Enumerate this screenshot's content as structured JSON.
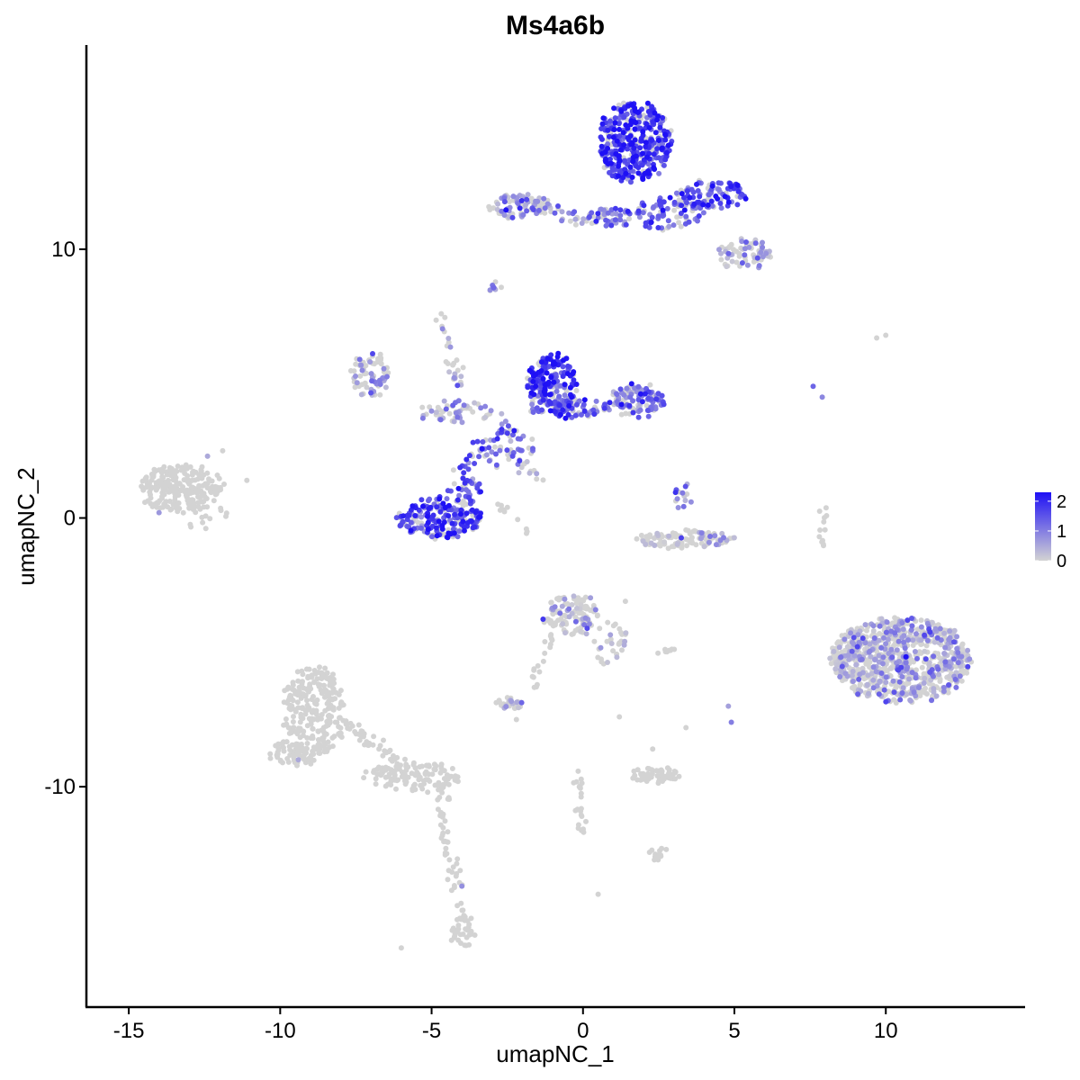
{
  "chart_data": {
    "type": "scatter",
    "title": "Ms4a6b",
    "xlabel": "umapNC_1",
    "ylabel": "umapNC_2",
    "xlim": [
      -16.4,
      14.6
    ],
    "ylim": [
      -18.2,
      17.6
    ],
    "x_ticks": [
      -15,
      -10,
      -5,
      0,
      5,
      10
    ],
    "x_tick_labels": [
      "-15",
      "-10",
      "-5",
      "0",
      "5",
      "10"
    ],
    "y_ticks": [
      -10,
      0,
      10
    ],
    "y_tick_labels": [
      "-10",
      "0",
      "10"
    ],
    "grid": false,
    "legend": {
      "placement": "right",
      "type": "colorbar",
      "ticks": [
        0,
        1,
        2
      ],
      "tick_labels": [
        "0",
        "1",
        "2"
      ],
      "range": [
        0,
        2.3
      ]
    },
    "color_low": "#d3d3d3",
    "color_high": "#1e10f5",
    "clusters": [
      {
        "cx": 1.7,
        "cy": 14.0,
        "rx": 1.2,
        "ry": 1.5,
        "n": 380,
        "expr": 1.7
      },
      {
        "cx": 4.2,
        "cy": 12.0,
        "rx": 1.3,
        "ry": 0.55,
        "n": 110,
        "expr": 1.4
      },
      {
        "cx": 2.8,
        "cy": 11.3,
        "rx": 1.2,
        "ry": 0.6,
        "n": 70,
        "expr": 1.2
      },
      {
        "cx": -2.1,
        "cy": 11.6,
        "rx": 1.0,
        "ry": 0.45,
        "n": 70,
        "expr": 0.7
      },
      {
        "cx": 0.9,
        "cy": 11.2,
        "rx": 0.7,
        "ry": 0.35,
        "n": 45,
        "expr": 1.3
      },
      {
        "cx": 5.3,
        "cy": 9.8,
        "rx": 0.9,
        "ry": 0.6,
        "n": 70,
        "expr": 0.5
      },
      {
        "cx": -2.9,
        "cy": 8.6,
        "rx": 0.25,
        "ry": 0.2,
        "n": 8,
        "expr": 0.9
      },
      {
        "cx": -1.0,
        "cy": 5.0,
        "rx": 0.8,
        "ry": 1.1,
        "n": 190,
        "expr": 1.8
      },
      {
        "cx": 1.8,
        "cy": 4.4,
        "rx": 0.9,
        "ry": 0.6,
        "n": 110,
        "expr": 1.1
      },
      {
        "cx": -0.5,
        "cy": 4.1,
        "rx": 1.4,
        "ry": 0.4,
        "n": 80,
        "expr": 1.2
      },
      {
        "cx": -7.0,
        "cy": 5.3,
        "rx": 0.6,
        "ry": 0.9,
        "n": 70,
        "expr": 0.3
      },
      {
        "cx": -4.2,
        "cy": 3.9,
        "rx": 1.2,
        "ry": 0.45,
        "n": 50,
        "expr": 0.5
      },
      {
        "cx": -2.5,
        "cy": 2.6,
        "rx": 0.9,
        "ry": 0.8,
        "n": 40,
        "expr": 1.2
      },
      {
        "cx": -4.7,
        "cy": 0.0,
        "rx": 1.4,
        "ry": 0.75,
        "n": 200,
        "expr": 1.6
      },
      {
        "cx": -3.9,
        "cy": 1.1,
        "rx": 0.5,
        "ry": 0.5,
        "n": 30,
        "expr": 1.4
      },
      {
        "cx": -13.3,
        "cy": 1.1,
        "rx": 1.4,
        "ry": 0.85,
        "n": 240,
        "expr": 0.02
      },
      {
        "cx": 3.4,
        "cy": -0.8,
        "rx": 1.6,
        "ry": 0.3,
        "n": 110,
        "expr": 0.1
      },
      {
        "cx": 3.3,
        "cy": 0.8,
        "rx": 0.25,
        "ry": 0.5,
        "n": 15,
        "expr": 0.9
      },
      {
        "cx": 10.5,
        "cy": -5.3,
        "rx": 2.3,
        "ry": 1.6,
        "n": 850,
        "expr": 0.3
      },
      {
        "cx": -0.4,
        "cy": -3.6,
        "rx": 0.9,
        "ry": 0.7,
        "n": 110,
        "expr": 0.2
      },
      {
        "cx": 0.9,
        "cy": -4.7,
        "rx": 0.6,
        "ry": 0.8,
        "n": 30,
        "expr": 0.05
      },
      {
        "cx": -8.9,
        "cy": -7.3,
        "rx": 1.0,
        "ry": 1.8,
        "n": 260,
        "expr": 0.02
      },
      {
        "cx": -9.7,
        "cy": -8.8,
        "rx": 0.6,
        "ry": 0.5,
        "n": 50,
        "expr": 0.02
      },
      {
        "cx": -5.6,
        "cy": -9.6,
        "rx": 1.6,
        "ry": 0.5,
        "n": 100,
        "expr": 0.0
      },
      {
        "cx": -4.0,
        "cy": -15.4,
        "rx": 0.4,
        "ry": 0.6,
        "n": 35,
        "expr": 0.0
      },
      {
        "cx": 2.4,
        "cy": -9.6,
        "rx": 0.8,
        "ry": 0.3,
        "n": 60,
        "expr": 0.02
      },
      {
        "cx": -2.4,
        "cy": -6.9,
        "rx": 0.5,
        "ry": 0.2,
        "n": 30,
        "expr": 0.1
      },
      {
        "cx": 2.4,
        "cy": -12.5,
        "rx": 0.35,
        "ry": 0.25,
        "n": 15,
        "expr": 0.0
      },
      {
        "cx": 7.9,
        "cy": -0.4,
        "rx": 0.15,
        "ry": 0.9,
        "n": 12,
        "expr": 0.0
      },
      {
        "cx": 2.7,
        "cy": -5.0,
        "rx": 0.35,
        "ry": 0.08,
        "n": 8,
        "expr": 0.0
      }
    ],
    "tracks": [
      {
        "from": [
          -2.0,
          11.7
        ],
        "to": [
          0.4,
          11.0
        ],
        "n": 35,
        "spread": 0.12,
        "expr": 0.8
      },
      {
        "from": [
          -4.7,
          7.6
        ],
        "to": [
          -3.9,
          4.0
        ],
        "n": 30,
        "spread": 0.1,
        "expr": 0.3
      },
      {
        "from": [
          -2.6,
          2.4
        ],
        "to": [
          -1.4,
          1.4
        ],
        "n": 18,
        "spread": 0.12,
        "expr": 0.1
      },
      {
        "from": [
          -4.1,
          1.7
        ],
        "to": [
          -2.4,
          3.7
        ],
        "n": 30,
        "spread": 0.12,
        "expr": 1.3
      },
      {
        "from": [
          -8.1,
          -7.5
        ],
        "to": [
          -4.3,
          -10.3
        ],
        "n": 70,
        "spread": 0.15,
        "expr": 0.0
      },
      {
        "from": [
          -4.8,
          -10.3
        ],
        "to": [
          -3.9,
          -15.0
        ],
        "n": 45,
        "spread": 0.12,
        "expr": 0.0
      },
      {
        "from": [
          -0.9,
          -4.2
        ],
        "to": [
          -1.7,
          -6.2
        ],
        "n": 18,
        "spread": 0.1,
        "expr": 0.0
      },
      {
        "from": [
          -0.2,
          -9.2
        ],
        "to": [
          0.0,
          -11.7
        ],
        "n": 22,
        "spread": 0.1,
        "expr": 0.0
      },
      {
        "from": [
          -13.0,
          -0.2
        ],
        "to": [
          -11.8,
          0.3
        ],
        "n": 12,
        "spread": 0.15,
        "expr": 0.0
      },
      {
        "from": [
          -2.8,
          0.5
        ],
        "to": [
          -1.8,
          -0.5
        ],
        "n": 10,
        "spread": 0.08,
        "expr": 0.0
      }
    ],
    "singles": [
      {
        "x": 9.7,
        "y": 6.7,
        "expr": 0.0
      },
      {
        "x": 10.0,
        "y": 6.8,
        "expr": 0.0
      },
      {
        "x": 7.6,
        "y": 4.9,
        "expr": 1.3
      },
      {
        "x": 7.9,
        "y": 4.5,
        "expr": 0.9
      },
      {
        "x": -11.1,
        "y": 1.4,
        "expr": 0.0
      },
      {
        "x": -11.9,
        "y": 2.5,
        "expr": 0.0
      },
      {
        "x": -6.0,
        "y": -16.0,
        "expr": 0.0
      },
      {
        "x": 0.5,
        "y": -14.0,
        "expr": 0.0
      },
      {
        "x": 4.8,
        "y": -7.0,
        "expr": 0.6
      },
      {
        "x": 4.9,
        "y": -7.6,
        "expr": 1.0
      },
      {
        "x": 1.2,
        "y": -7.4,
        "expr": 0.0
      },
      {
        "x": 3.4,
        "y": -7.8,
        "expr": 0.0
      },
      {
        "x": 2.3,
        "y": -8.6,
        "expr": 0.0
      },
      {
        "x": -2.2,
        "y": -7.5,
        "expr": 0.0
      },
      {
        "x": -9.4,
        "y": -9.0,
        "expr": 0.5
      },
      {
        "x": -4.0,
        "y": -13.7,
        "expr": 0.8
      },
      {
        "x": -12.4,
        "y": 2.3,
        "expr": 0.5
      },
      {
        "x": -14.0,
        "y": 0.2,
        "expr": 0.7
      },
      {
        "x": 1.4,
        "y": -3.1,
        "expr": 0.0
      }
    ]
  }
}
